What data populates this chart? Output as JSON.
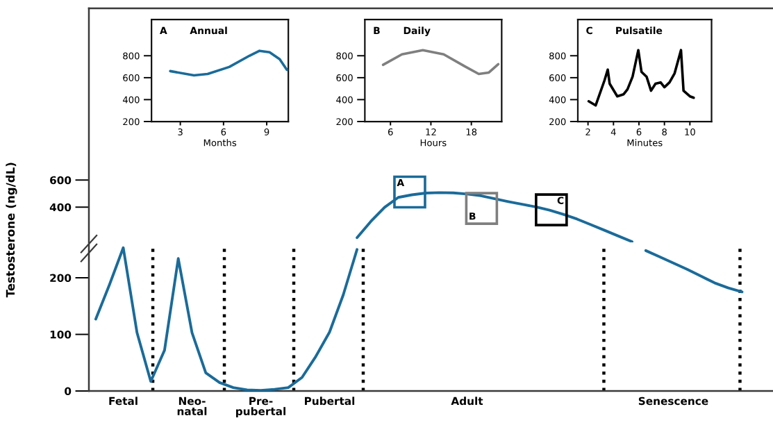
{
  "chart_data": [
    {
      "type": "line",
      "ylim": [
        140,
        1867
      ],
      "yticks": [
        400,
        600
      ],
      "tick_labels": "y",
      "categories": [
        null,
        null,
        null,
        null,
        null,
        null,
        null,
        null,
        null,
        null,
        null,
        null,
        null,
        null,
        null,
        null,
        null,
        null,
        null,
        null,
        null,
        null,
        null,
        null,
        null,
        null,
        null,
        null,
        null,
        null,
        null,
        null,
        null,
        null,
        null,
        null,
        null,
        null,
        null,
        null,
        null,
        null,
        null,
        null,
        null,
        null,
        null,
        null,
        null,
        null
      ],
      "series": [
        {
          "color": "#1a6b9a",
          "values": [
            null,
            null,
            null,
            null,
            null,
            null,
            null,
            null,
            null,
            null,
            null,
            null,
            null,
            null,
            null,
            null,
            null,
            null,
            null,
            175,
            294,
            398,
            472,
            491,
            504,
            507,
            505,
            497,
            484,
            462,
            441,
            421,
            402,
            378,
            347,
            312,
            271,
            229,
            187,
            145,
            null,
            null,
            null,
            null,
            null,
            null,
            null,
            null,
            null,
            null
          ]
        }
      ],
      "annotations": [
        "A",
        "B",
        "C"
      ]
    },
    {
      "type": "line",
      "ylim": [
        0,
        259
      ],
      "yticks": [
        0,
        100,
        200
      ],
      "ylabel": "Testosterone (ng/dL)",
      "categories": [
        null,
        null,
        "Fetal",
        null,
        null,
        null,
        null,
        "Neo-\nnatal",
        null,
        null,
        null,
        null,
        "Pre-\npubertal",
        null,
        null,
        null,
        null,
        "Pubertal",
        null,
        null,
        null,
        null,
        null,
        null,
        null,
        null,
        null,
        "Adult",
        null,
        null,
        null,
        null,
        null,
        null,
        null,
        null,
        null,
        null,
        null,
        null,
        null,
        null,
        "Senescence",
        null,
        null,
        null,
        null,
        null,
        null,
        null
      ],
      "series": [
        {
          "color": "#1a6b9a",
          "values": [
            127,
            188,
            253,
            103,
            17,
            72,
            234,
            103,
            32,
            15,
            6,
            2,
            1,
            3,
            6,
            24,
            61,
            104,
            170,
            250,
            null,
            null,
            null,
            null,
            null,
            null,
            null,
            null,
            null,
            null,
            null,
            null,
            null,
            null,
            null,
            null,
            null,
            null,
            null,
            null,
            248,
            237,
            226,
            215,
            203,
            191,
            182,
            175,
            null,
            null
          ]
        }
      ]
    },
    {
      "type": "line",
      "title": "Annual",
      "annotations": [
        "A"
      ],
      "xlabel": "Months",
      "xlim": [
        1,
        10.5
      ],
      "ylim": [
        200,
        1130
      ],
      "xticks": [
        3,
        6,
        9
      ],
      "yticks": [
        200,
        400,
        600,
        800
      ],
      "series": [
        {
          "color": "#1a6b9a",
          "x": [
            2.3,
            3.95,
            4.9,
            6.4,
            7.8,
            8.5,
            9.2,
            9.9,
            10.4
          ],
          "values": [
            660,
            621,
            634,
            698,
            800,
            845,
            832,
            768,
            672
          ]
        }
      ]
    },
    {
      "type": "line",
      "title": "Daily",
      "annotations": [
        "B"
      ],
      "xlabel": "Hours",
      "xlim": [
        2.2,
        22.5
      ],
      "ylim": [
        200,
        1130
      ],
      "xticks": [
        6,
        12,
        18
      ],
      "yticks": [
        200,
        400,
        600,
        800
      ],
      "series": [
        {
          "color": "#7f7f7f",
          "x": [
            4.9,
            7.7,
            10.8,
            13.9,
            17,
            19.1,
            20.6,
            22
          ],
          "values": [
            717,
            813,
            851,
            813,
            704,
            634,
            647,
            723
          ]
        }
      ]
    },
    {
      "type": "line",
      "title": "Pulsatile",
      "annotations": [
        "C"
      ],
      "xlabel": "Minutes",
      "xlim": [
        1.2,
        11.7
      ],
      "ylim": [
        200,
        1130
      ],
      "xticks": [
        2,
        4,
        6,
        8,
        10
      ],
      "yticks": [
        200,
        400,
        600,
        800
      ],
      "series": [
        {
          "color": "#000000",
          "x": [
            2.05,
            2.6,
            3.3,
            3.55,
            3.7,
            4.3,
            4.8,
            5.1,
            5.5,
            5.95,
            6.2,
            6.6,
            6.95,
            7.3,
            7.7,
            8.0,
            8.4,
            8.8,
            9.3,
            9.5,
            10,
            10.3
          ],
          "values": [
            385,
            347,
            577,
            673,
            545,
            430,
            449,
            494,
            609,
            851,
            653,
            609,
            481,
            545,
            557,
            513,
            557,
            640,
            851,
            481,
            430,
            417
          ]
        }
      ]
    }
  ]
}
